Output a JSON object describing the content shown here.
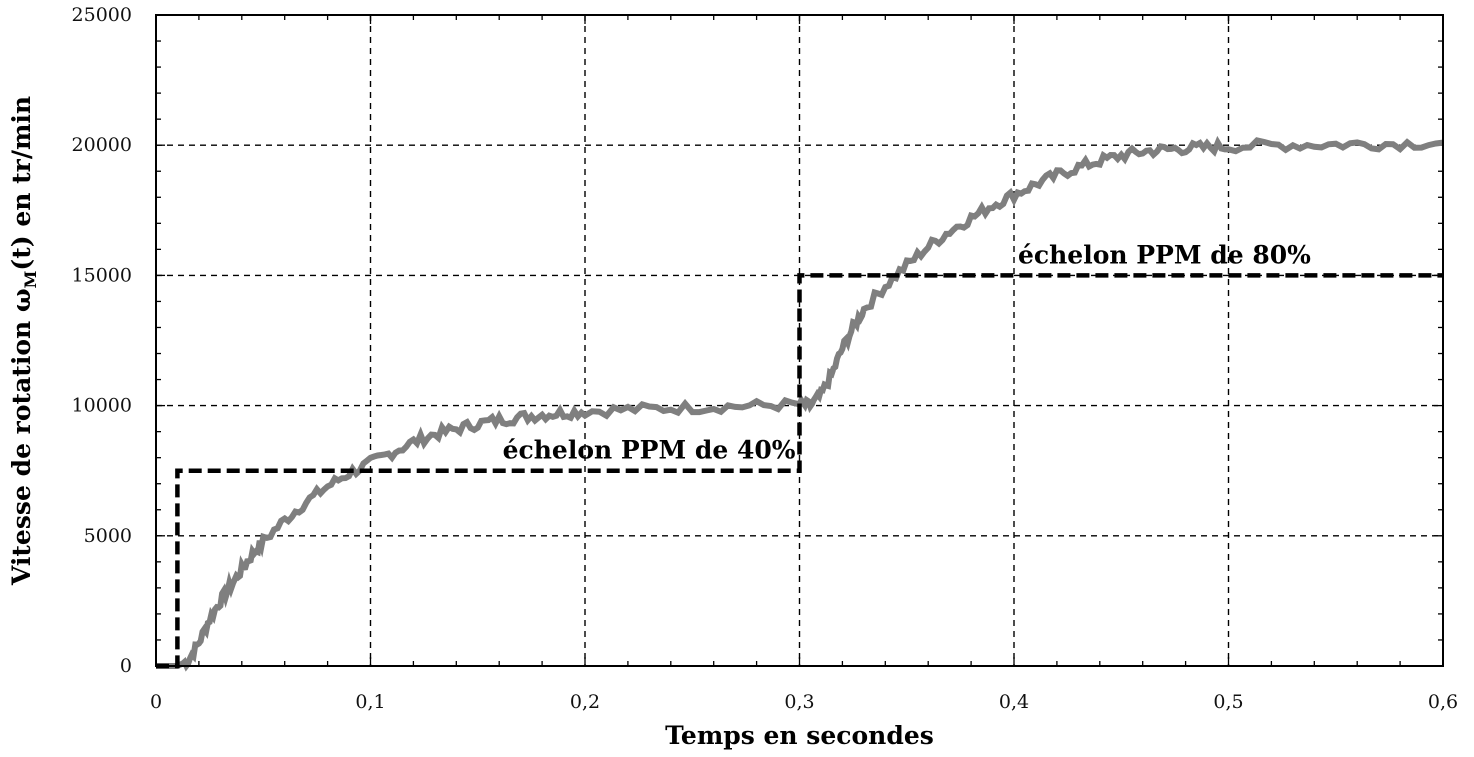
{
  "chart_data": {
    "type": "line",
    "xlabel": "Temps en secondes",
    "ylabel_main": "Vitesse de rotation ω",
    "ylabel_sub": "M",
    "ylabel_tail": "(t) en tr/min",
    "xlim": [
      0,
      0.6
    ],
    "ylim": [
      0,
      25000
    ],
    "x_ticks": [
      0,
      0.1,
      0.2,
      0.3,
      0.4,
      0.5,
      0.6
    ],
    "x_tick_labels": [
      "0",
      "0,1",
      "0,2",
      "0,3",
      "0,4",
      "0,5",
      "0,6"
    ],
    "y_ticks": [
      0,
      5000,
      10000,
      15000,
      20000,
      25000
    ],
    "y_tick_labels": [
      "0",
      "5000",
      "10000",
      "15000",
      "20000",
      "25000"
    ],
    "grid": true,
    "series": [
      {
        "color": "#7f7f7f",
        "style": "solid-noisy",
        "x": [
          0,
          0.005,
          0.01,
          0.015,
          0.02,
          0.025,
          0.03,
          0.035,
          0.04,
          0.045,
          0.05,
          0.06,
          0.07,
          0.08,
          0.09,
          0.1,
          0.11,
          0.12,
          0.13,
          0.14,
          0.15,
          0.16,
          0.17,
          0.18,
          0.19,
          0.2,
          0.22,
          0.24,
          0.26,
          0.28,
          0.3,
          0.305,
          0.31,
          0.315,
          0.32,
          0.325,
          0.33,
          0.34,
          0.35,
          0.36,
          0.37,
          0.38,
          0.39,
          0.4,
          0.41,
          0.42,
          0.43,
          0.44,
          0.45,
          0.46,
          0.47,
          0.48,
          0.49,
          0.5,
          0.52,
          0.54,
          0.56,
          0.58,
          0.6
        ],
        "y": [
          0,
          0,
          0,
          200,
          900,
          1800,
          2500,
          3100,
          3700,
          4300,
          4800,
          5600,
          6300,
          6900,
          7400,
          7800,
          8200,
          8600,
          8900,
          9100,
          9300,
          9450,
          9550,
          9650,
          9720,
          9780,
          9850,
          9900,
          9950,
          10000,
          10050,
          10000,
          10400,
          11200,
          12200,
          13000,
          13700,
          14600,
          15400,
          16100,
          16700,
          17200,
          17700,
          18100,
          18500,
          18850,
          19150,
          19400,
          19600,
          19750,
          19830,
          19880,
          19920,
          19950,
          20000,
          20020,
          20040,
          20060,
          20100
        ]
      },
      {
        "name": "échelon PPM",
        "color": "#000000",
        "style": "dashed",
        "x": [
          0,
          0.01,
          0.01,
          0.3,
          0.3,
          0.6
        ],
        "y": [
          0,
          0,
          7500,
          7500,
          15000,
          15000
        ]
      }
    ],
    "annotations": [
      {
        "text": "échelon PPM de 40%",
        "x": 0.3,
        "y": 7500,
        "anchor": "end"
      },
      {
        "text": "échelon PPM de 80%",
        "x": 0.4,
        "y": 15000,
        "anchor": "start"
      }
    ]
  }
}
